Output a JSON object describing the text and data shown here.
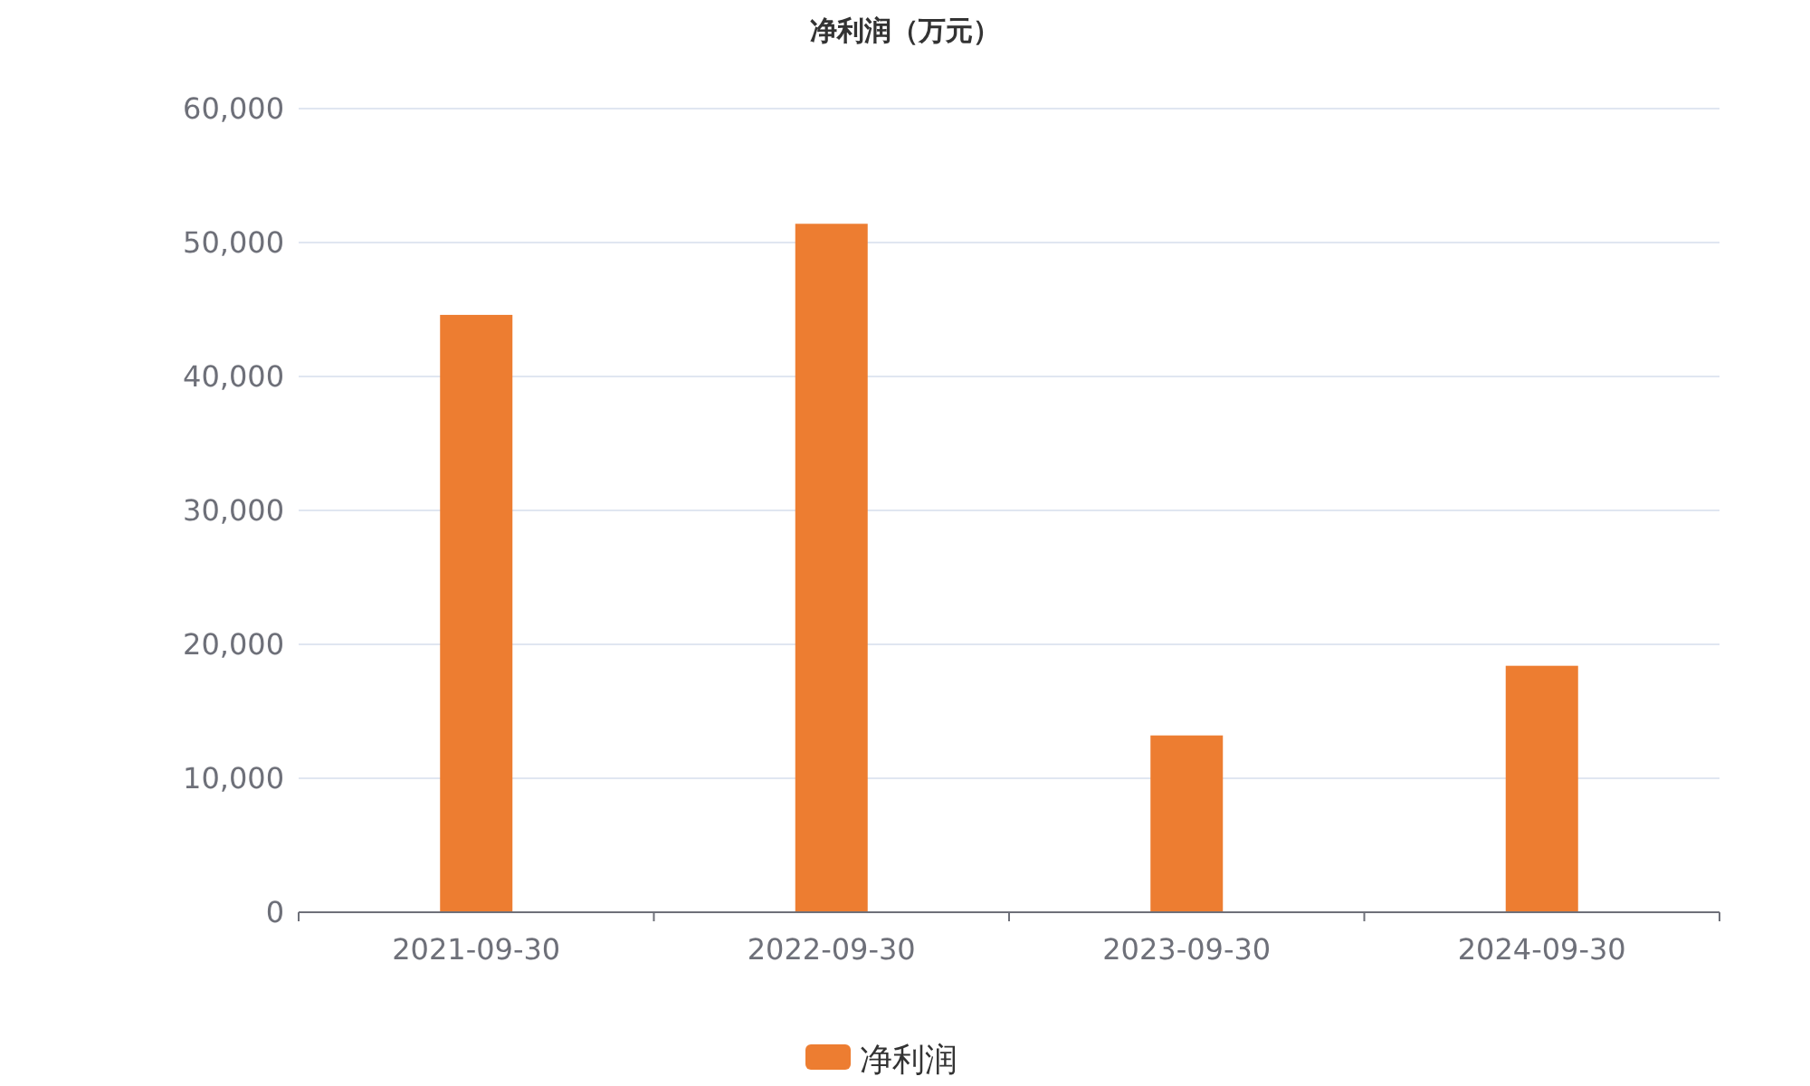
{
  "chart_data": {
    "type": "bar",
    "title": "净利润（万元）",
    "categories": [
      "2021-09-30",
      "2022-09-30",
      "2023-09-30",
      "2024-09-30"
    ],
    "series": [
      {
        "name": "净利润",
        "color": "#ed7d31",
        "values": [
          44600,
          51400,
          13200,
          18400
        ]
      }
    ],
    "ylim": [
      0,
      60000
    ],
    "yticks": [
      {
        "value": 0,
        "label": "0"
      },
      {
        "value": 10000,
        "label": "10,000"
      },
      {
        "value": 20000,
        "label": "20,000"
      },
      {
        "value": 30000,
        "label": "30,000"
      },
      {
        "value": 40000,
        "label": "40,000"
      },
      {
        "value": 50000,
        "label": "50,000"
      },
      {
        "value": 60000,
        "label": "60,000"
      }
    ],
    "grid": "y",
    "legend": "bottom"
  }
}
